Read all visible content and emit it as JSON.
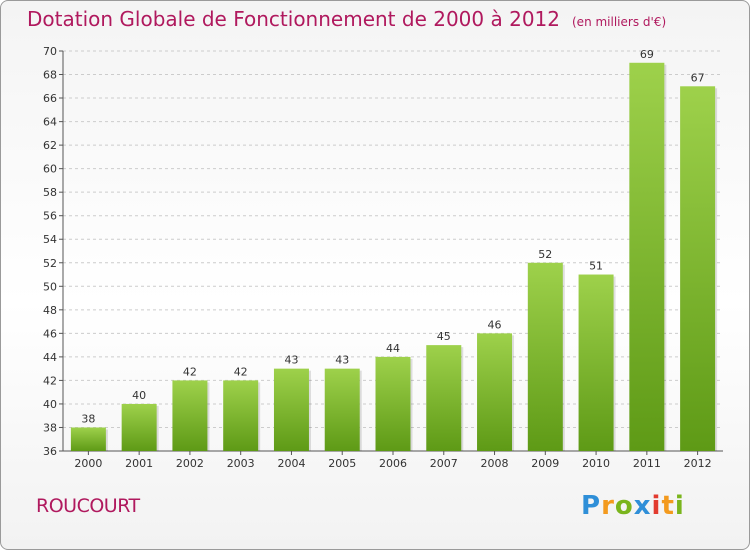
{
  "title": "Dotation Globale de Fonctionnement de 2000 à 2012",
  "unit": "(en milliers d'€)",
  "commune": "ROUCOURT",
  "logo": {
    "letters": [
      "P",
      "r",
      "o",
      "x",
      "i",
      "t",
      "i"
    ],
    "colors": [
      "#2f8fd8",
      "#f39a1e",
      "#7ab51d",
      "#2f8fd8",
      "#e23b2f",
      "#f39a1e",
      "#7ab51d"
    ]
  },
  "colors": {
    "bar_top": "#9ed14b",
    "bar_bottom": "#5e9a16",
    "accent": "#b0195e",
    "grid": "#cccccc"
  },
  "chart_data": {
    "type": "bar",
    "categories": [
      "2000",
      "2001",
      "2002",
      "2003",
      "2004",
      "2005",
      "2006",
      "2007",
      "2008",
      "2009",
      "2010",
      "2011",
      "2012"
    ],
    "values": [
      38,
      40,
      42,
      42,
      43,
      43,
      44,
      45,
      46,
      52,
      51,
      69,
      67
    ],
    "ylim": [
      36,
      70
    ],
    "yticks": [
      36,
      38,
      40,
      42,
      44,
      46,
      48,
      50,
      52,
      54,
      56,
      58,
      60,
      62,
      64,
      66,
      68,
      70
    ],
    "grid": true,
    "legend": "none"
  }
}
